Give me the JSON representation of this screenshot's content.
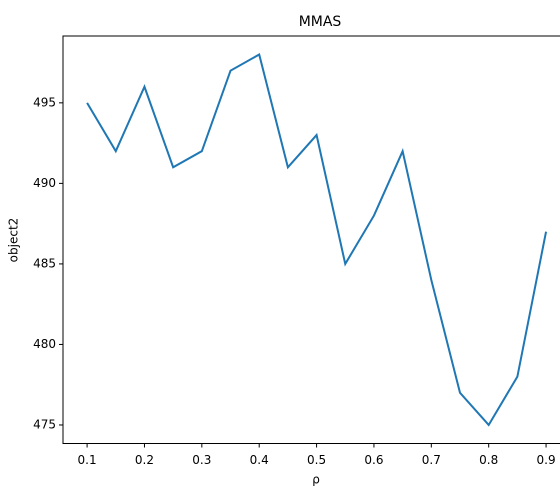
{
  "chart_data": {
    "type": "line",
    "title": "MMAS",
    "x_label": "ρ",
    "y_label": "object2",
    "x": [
      0.1,
      0.15,
      0.2,
      0.25,
      0.3,
      0.35,
      0.4,
      0.45,
      0.5,
      0.55,
      0.6,
      0.65,
      0.7,
      0.75,
      0.8,
      0.85,
      0.9
    ],
    "series": [
      {
        "name": "object2",
        "color": "#1f77b4",
        "values": [
          495,
          492,
          496,
          491,
          492,
          497,
          498,
          491,
          493,
          485,
          488,
          492,
          484,
          477,
          475,
          478,
          487
        ]
      }
    ],
    "xlim": [
      0.058,
      0.94
    ],
    "xticks": [
      0.1,
      0.2,
      0.3,
      0.4,
      0.5,
      0.6,
      0.7,
      0.8,
      0.9
    ],
    "ylim": [
      473.85,
      499.15
    ],
    "yticks": [
      475,
      480,
      485,
      490,
      495
    ]
  }
}
